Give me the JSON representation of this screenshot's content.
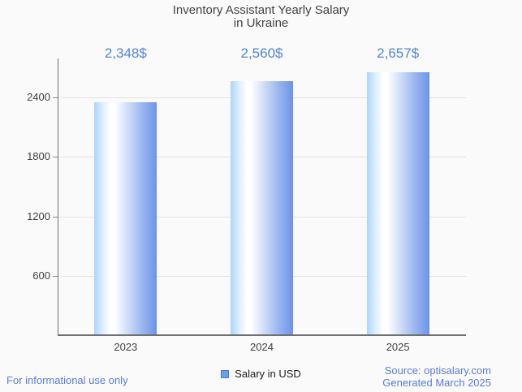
{
  "chart_data": {
    "type": "bar",
    "title_lines": [
      "Inventory Assistant Yearly Salary",
      "in Ukraine"
    ],
    "title": "Inventory Assistant Yearly Salary in Ukraine",
    "categories": [
      "2023",
      "2024",
      "2025"
    ],
    "series": [
      {
        "name": "Salary in USD",
        "values": [
          2348,
          2560,
          2657
        ]
      }
    ],
    "value_labels": [
      "2,348$",
      "2,560$",
      "2,657$"
    ],
    "yticks": [
      600,
      1200,
      1800,
      2400
    ],
    "ylim": [
      0,
      2793
    ],
    "grid": true,
    "legend_position": "bottom",
    "legend": [
      {
        "label": "Salary in USD",
        "swatch_color": "#6d9eeb"
      }
    ],
    "colors": {
      "background": "#fafafa",
      "title_text": "#424242",
      "axis_text": "#424242",
      "axis_line": "#6f6f6f",
      "gridline": "#e3e3e3",
      "value_label_text": "#5285d1",
      "bar_gradient_left": "#a8d5fc",
      "bar_gradient_mid": "#ffffff",
      "bar_gradient_right": "#6b93e7",
      "legend_swatch_fill": "#6d9eeb",
      "legend_swatch_border": "#4a7ed0",
      "footer_text": "#5b7cd9"
    }
  },
  "footer": {
    "left_note": "For informational use only",
    "source_line1": "Source: optisalary.com",
    "source_line2": "Generated March 2025"
  }
}
